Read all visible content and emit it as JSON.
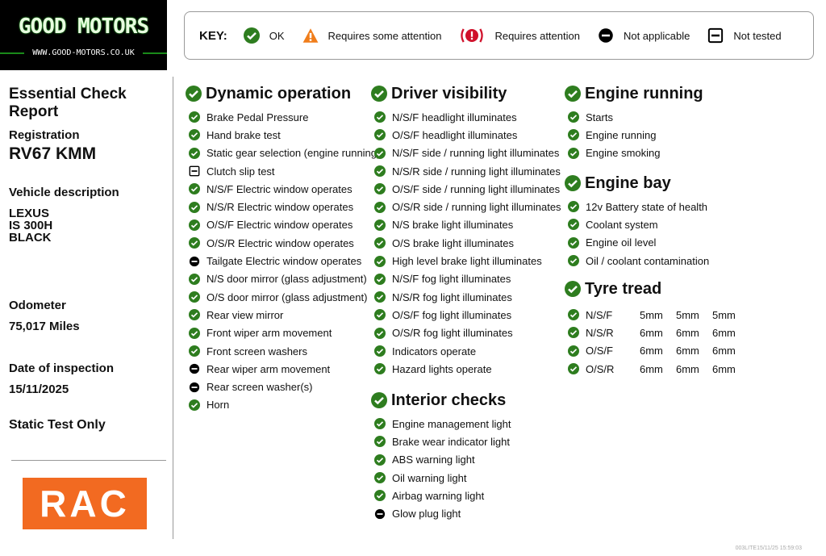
{
  "logo": {
    "name": "GOOD MOTORS",
    "url": "WWW.GOOD-MOTORS.CO.UK"
  },
  "key": {
    "label": "KEY:",
    "items": [
      {
        "icon": "ok",
        "label": "OK"
      },
      {
        "icon": "some_attention",
        "label": "Requires some attention"
      },
      {
        "icon": "attention",
        "label": "Requires attention"
      },
      {
        "icon": "na",
        "label": "Not applicable"
      },
      {
        "icon": "not_tested",
        "label": "Not tested"
      }
    ]
  },
  "colors": {
    "ok": "#2e7d1f",
    "some_attention": "#f07d1a",
    "attention": "#d0112b",
    "brand_rac": "#f26a21"
  },
  "report": {
    "title": "Essential Check Report",
    "registration_label": "Registration",
    "registration": "RV67 KMM",
    "vehicle_label": "Vehicle description",
    "make": "LEXUS",
    "model": "IS 300H",
    "colour": "BLACK",
    "odometer_label": "Odometer",
    "odometer": "75,017 Miles",
    "date_label": "Date of inspection",
    "date": "15/11/2025",
    "test_type": "Static Test Only"
  },
  "rac_logo": "RAC",
  "sections": [
    {
      "title": "Dynamic operation",
      "status": "ok",
      "items": [
        {
          "label": "Brake Pedal Pressure",
          "status": "ok"
        },
        {
          "label": "Hand brake test",
          "status": "ok"
        },
        {
          "label": "Static gear selection (engine running)",
          "status": "ok"
        },
        {
          "label": "Clutch slip test",
          "status": "not_tested"
        },
        {
          "label": "N/S/F Electric window operates",
          "status": "ok"
        },
        {
          "label": "N/S/R Electric window operates",
          "status": "ok"
        },
        {
          "label": "O/S/F Electric window operates",
          "status": "ok"
        },
        {
          "label": "O/S/R Electric window operates",
          "status": "ok"
        },
        {
          "label": "Tailgate Electric window operates",
          "status": "na"
        },
        {
          "label": "N/S door mirror (glass adjustment)",
          "status": "ok"
        },
        {
          "label": "O/S door mirror (glass adjustment)",
          "status": "ok"
        },
        {
          "label": "Rear view mirror",
          "status": "ok"
        },
        {
          "label": "Front wiper arm movement",
          "status": "ok"
        },
        {
          "label": "Front screen washers",
          "status": "ok"
        },
        {
          "label": "Rear wiper arm movement",
          "status": "na"
        },
        {
          "label": "Rear screen washer(s)",
          "status": "na"
        },
        {
          "label": "Horn",
          "status": "ok"
        }
      ]
    },
    {
      "title": "Driver visibility",
      "status": "ok",
      "items": [
        {
          "label": "N/S/F headlight illuminates",
          "status": "ok"
        },
        {
          "label": "O/S/F headlight illuminates",
          "status": "ok"
        },
        {
          "label": "N/S/F side / running light illuminates",
          "status": "ok"
        },
        {
          "label": "N/S/R side / running light illuminates",
          "status": "ok"
        },
        {
          "label": "O/S/F side / running light illuminates",
          "status": "ok"
        },
        {
          "label": "O/S/R side / running light illuminates",
          "status": "ok"
        },
        {
          "label": "N/S brake light illuminates",
          "status": "ok"
        },
        {
          "label": "O/S brake light illuminates",
          "status": "ok"
        },
        {
          "label": "High level brake light illuminates",
          "status": "ok"
        },
        {
          "label": "N/S/F fog light illuminates",
          "status": "ok"
        },
        {
          "label": "N/S/R fog light illuminates",
          "status": "ok"
        },
        {
          "label": "O/S/F fog light illuminates",
          "status": "ok"
        },
        {
          "label": "O/S/R fog light illuminates",
          "status": "ok"
        },
        {
          "label": "Indicators operate",
          "status": "ok"
        },
        {
          "label": "Hazard lights operate",
          "status": "ok"
        }
      ]
    },
    {
      "title": "Interior checks",
      "status": "ok",
      "items": [
        {
          "label": "Engine management light",
          "status": "ok"
        },
        {
          "label": "Brake wear indicator light",
          "status": "ok"
        },
        {
          "label": "ABS warning light",
          "status": "ok"
        },
        {
          "label": "Oil warning light",
          "status": "ok"
        },
        {
          "label": "Airbag warning light",
          "status": "ok"
        },
        {
          "label": "Glow plug light",
          "status": "na"
        }
      ]
    },
    {
      "title": "Engine running",
      "status": "ok",
      "items": [
        {
          "label": "Starts",
          "status": "ok"
        },
        {
          "label": "Engine running",
          "status": "ok"
        },
        {
          "label": "Engine smoking",
          "status": "ok"
        }
      ]
    },
    {
      "title": "Engine bay",
      "status": "ok",
      "items": [
        {
          "label": "12v Battery state of health",
          "status": "ok"
        },
        {
          "label": "Coolant system",
          "status": "ok"
        },
        {
          "label": "Engine oil level",
          "status": "ok"
        },
        {
          "label": "Oil / coolant contamination",
          "status": "ok"
        }
      ]
    }
  ],
  "tyre_tread": {
    "title": "Tyre tread",
    "status": "ok",
    "rows": [
      {
        "position": "N/S/F",
        "status": "ok",
        "depths": [
          "5mm",
          "5mm",
          "5mm"
        ]
      },
      {
        "position": "N/S/R",
        "status": "ok",
        "depths": [
          "6mm",
          "6mm",
          "6mm"
        ]
      },
      {
        "position": "O/S/F",
        "status": "ok",
        "depths": [
          "6mm",
          "6mm",
          "6mm"
        ]
      },
      {
        "position": "O/S/R",
        "status": "ok",
        "depths": [
          "6mm",
          "6mm",
          "6mm"
        ]
      }
    ]
  },
  "footer": "003LITE15/11/25 15:59:03"
}
